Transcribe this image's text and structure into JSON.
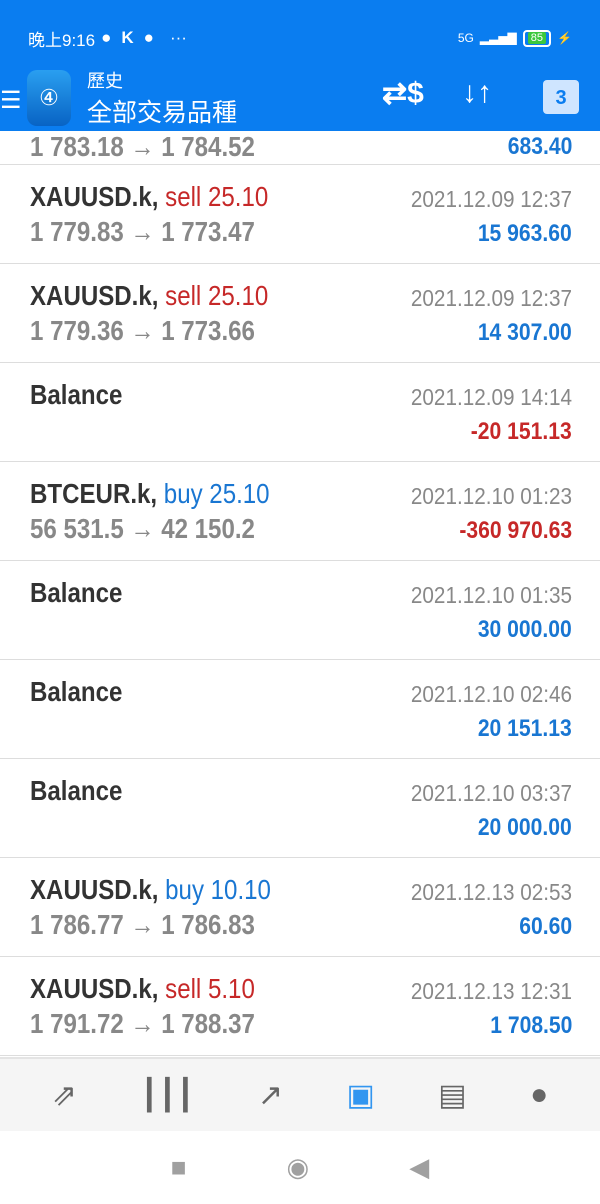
{
  "status_bar": {
    "time": "晚上9:16",
    "network": "5G",
    "battery": "85"
  },
  "header": {
    "subtitle": "歷史",
    "title": "全部交易品種",
    "calendar_day": "3"
  },
  "rows": [
    {
      "symbol": "",
      "action": "",
      "type": "",
      "price": "1 783.18 → 1 784.52",
      "date": "",
      "amount": "683.40",
      "sign": "pos"
    },
    {
      "symbol": "XAUUSD.k,",
      "action": "sell 25.10",
      "type": "sell",
      "price": "1 779.83 → 1 773.47",
      "date": "2021.12.09 12:37",
      "amount": "15 963.60",
      "sign": "pos"
    },
    {
      "symbol": "XAUUSD.k,",
      "action": "sell 25.10",
      "type": "sell",
      "price": "1 779.36 → 1 773.66",
      "date": "2021.12.09 12:37",
      "amount": "14 307.00",
      "sign": "pos"
    },
    {
      "symbol": "Balance",
      "action": "",
      "type": "",
      "price": "",
      "date": "2021.12.09 14:14",
      "amount": "-20 151.13",
      "sign": "neg"
    },
    {
      "symbol": "BTCEUR.k,",
      "action": "buy 25.10",
      "type": "buy",
      "price": "56 531.5 → 42 150.2",
      "date": "2021.12.10 01:23",
      "amount": "-360 970.63",
      "sign": "neg"
    },
    {
      "symbol": "Balance",
      "action": "",
      "type": "",
      "price": "",
      "date": "2021.12.10 01:35",
      "amount": "30 000.00",
      "sign": "pos"
    },
    {
      "symbol": "Balance",
      "action": "",
      "type": "",
      "price": "",
      "date": "2021.12.10 02:46",
      "amount": "20 151.13",
      "sign": "pos"
    },
    {
      "symbol": "Balance",
      "action": "",
      "type": "",
      "price": "",
      "date": "2021.12.10 03:37",
      "amount": "20 000.00",
      "sign": "pos"
    },
    {
      "symbol": "XAUUSD.k,",
      "action": "buy 10.10",
      "type": "buy",
      "price": "1 786.77 → 1 786.83",
      "date": "2021.12.13 02:53",
      "amount": "60.60",
      "sign": "pos"
    },
    {
      "symbol": "XAUUSD.k,",
      "action": "sell 5.10",
      "type": "sell",
      "price": "1 791.72 → 1 788.37",
      "date": "2021.12.13 12:31",
      "amount": "1 708.50",
      "sign": "pos"
    }
  ],
  "bottom_nav": [
    {
      "icon": "quotes-icon"
    },
    {
      "icon": "chart-icon"
    },
    {
      "icon": "trade-icon"
    },
    {
      "icon": "history-icon",
      "active": true
    },
    {
      "icon": "news-icon"
    },
    {
      "icon": "chat-icon"
    }
  ],
  "colors": {
    "header": "#0a7df0",
    "sell": "#c62828",
    "buy": "#1976d2",
    "active_nav": "#3296f0"
  }
}
